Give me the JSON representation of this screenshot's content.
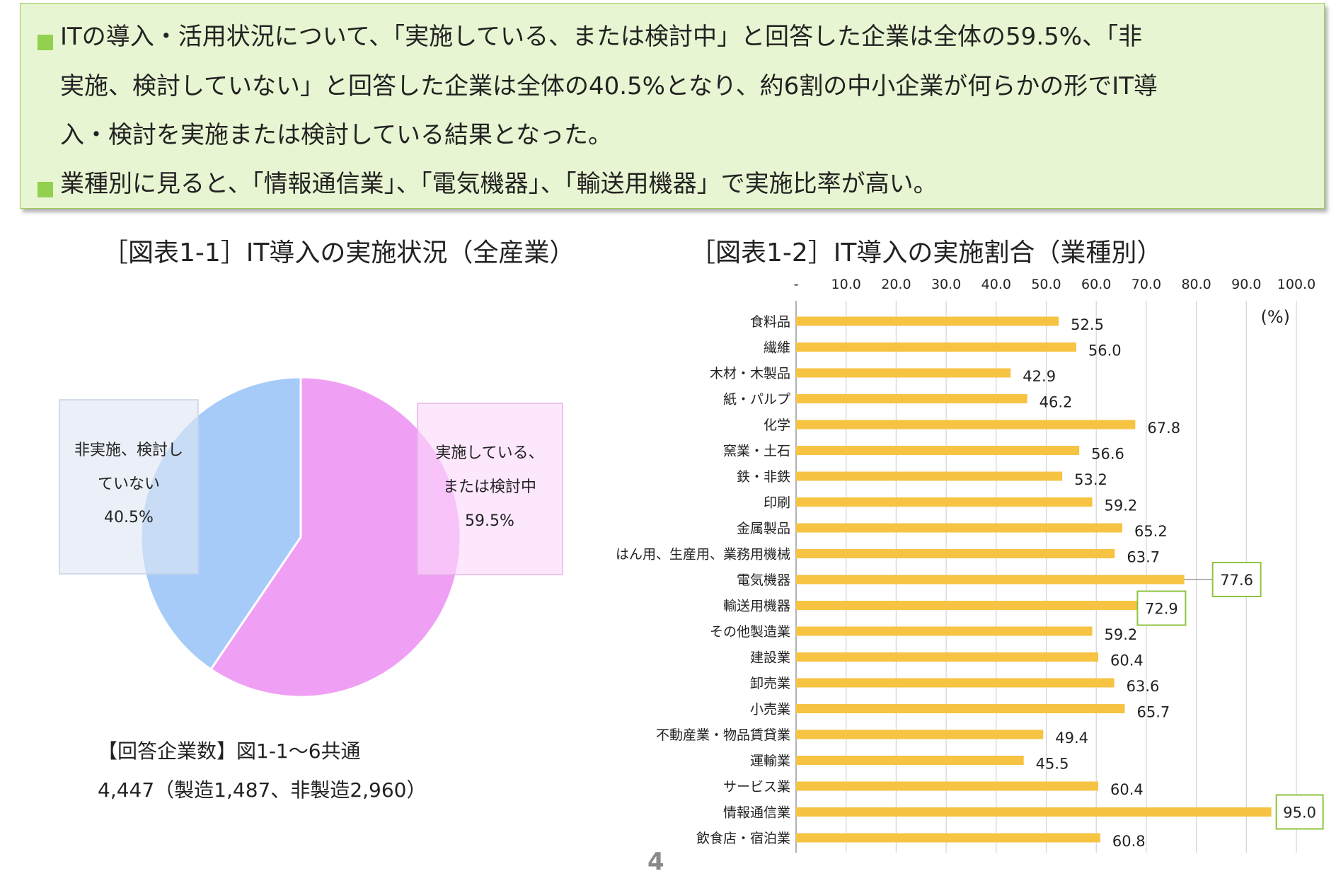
{
  "summary": {
    "line1": "ITの導入・活用状況について、「実施している、または検討中」と回答した企業は全体の59.5%、「非",
    "line2": "実施、検討していない」と回答した企業は全体の40.5%となり、約6割の中小企業が何らかの形でIT導",
    "line3": "入・検討を実施または検討している結果となった。",
    "line4": "業種別に見ると、「情報通信業」、「電気機器」、「輸送用機器」で実施比率が高い。"
  },
  "colors": {
    "bullet": "#92d050",
    "box_bg": "#e8f5d2",
    "box_border": "#9ccc5a",
    "pie_implemented": "#f0a0f4",
    "pie_not_implemented": "#a6cbf8",
    "bar": "#f6c343",
    "highlight_box": "#8cc63f"
  },
  "chart_data": [
    {
      "type": "pie",
      "title": "［図表1-1］IT導入の実施状況（全産業）",
      "slices": [
        {
          "label_line1": "実施している、",
          "label_line2": "または検討中",
          "value": 59.5,
          "value_label": "59.5%"
        },
        {
          "label_line1": "非実施、検討し",
          "label_line2": "ていない",
          "value": 40.5,
          "value_label": "40.5%"
        }
      ],
      "note_line1": "【回答企業数】図1-1～6共通",
      "note_line2": "4,447（製造1,487、非製造2,960）"
    },
    {
      "type": "bar",
      "orientation": "horizontal",
      "title": "［図表1-2］IT導入の実施割合（業種別）",
      "unit": "(%)",
      "xlim": [
        0,
        100
      ],
      "tick_labels": [
        "-",
        "10.0",
        "20.0",
        "30.0",
        "40.0",
        "50.0",
        "60.0",
        "70.0",
        "80.0",
        "90.0",
        "100.0"
      ],
      "grid": true,
      "categories": [
        "食料品",
        "繊維",
        "木材・木製品",
        "紙・パルプ",
        "化学",
        "窯業・土石",
        "鉄・非鉄",
        "印刷",
        "金属製品",
        "はん用、生産用、業務用機械",
        "電気機器",
        "輸送用機器",
        "その他製造業",
        "建設業",
        "卸売業",
        "小売業",
        "不動産業・物品賃貸業",
        "運輸業",
        "サービス業",
        "情報通信業",
        "飲食店・宿泊業"
      ],
      "values": [
        52.5,
        56.0,
        42.9,
        46.2,
        67.8,
        56.6,
        53.2,
        59.2,
        65.2,
        63.7,
        77.6,
        72.9,
        59.2,
        60.4,
        63.6,
        65.7,
        49.4,
        45.5,
        60.4,
        95.0,
        60.8
      ],
      "value_labels": [
        "52.5",
        "56.0",
        "42.9",
        "46.2",
        "67.8",
        "56.6",
        "53.2",
        "59.2",
        "65.2",
        "63.7",
        "77.6",
        "72.9",
        "59.2",
        "60.4",
        "63.6",
        "65.7",
        "49.4",
        "45.5",
        "60.4",
        "95.0",
        "60.8"
      ],
      "highlighted": [
        "電気機器",
        "輸送用機器",
        "情報通信業"
      ]
    }
  ],
  "page_number": "4"
}
